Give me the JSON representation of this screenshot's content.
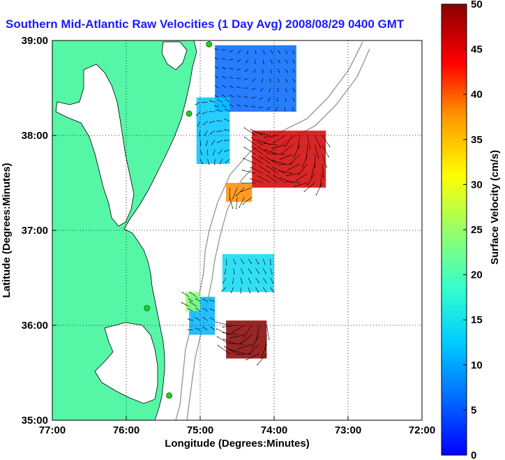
{
  "chart_data": {
    "type": "heatmap",
    "title": "Southern Mid-Atlantic Raw Velocities (1 Day Avg) 2008/08/29 0400 GMT",
    "xlabel": "Longitude (Degrees:Minutes)",
    "ylabel": "Latitude (Degrees:Minutes)",
    "colorbar_label": "Surface Velocity (cm/s)",
    "xlim": [
      -77,
      -72
    ],
    "ylim": [
      35,
      39
    ],
    "x_ticks": [
      {
        "value": -77,
        "label": "77:00"
      },
      {
        "value": -76,
        "label": "76:00"
      },
      {
        "value": -75,
        "label": "75:00"
      },
      {
        "value": -74,
        "label": "74:00"
      },
      {
        "value": -73,
        "label": "73:00"
      },
      {
        "value": -72,
        "label": "72:00"
      }
    ],
    "y_ticks": [
      {
        "value": 39,
        "label": "39:00"
      },
      {
        "value": 38,
        "label": "38:00"
      },
      {
        "value": 37,
        "label": "37:00"
      },
      {
        "value": 36,
        "label": "36:00"
      },
      {
        "value": 35,
        "label": "35:00"
      }
    ],
    "colorbar": {
      "min": 0,
      "max": 50,
      "ticks": [
        0,
        5,
        10,
        15,
        20,
        25,
        30,
        35,
        40,
        45,
        50
      ]
    },
    "grid": true,
    "colors": {
      "land": "#55f7a6",
      "title": "#1a1aff",
      "station": "#22cc22",
      "bathymetry": "#9a9a9a"
    },
    "stations": [
      {
        "lon": -74.88,
        "lat": 38.96
      },
      {
        "lon": -75.15,
        "lat": 38.23
      },
      {
        "lon": -75.72,
        "lat": 36.18
      },
      {
        "lon": -75.42,
        "lat": 35.26
      }
    ],
    "velocity_regions": [
      {
        "lon": [
          -74.8,
          -73.7
        ],
        "lat": [
          38.25,
          38.95
        ],
        "speed_cm_s": 6
      },
      {
        "lon": [
          -75.05,
          -74.6
        ],
        "lat": [
          37.7,
          38.4
        ],
        "speed_cm_s": 12
      },
      {
        "lon": [
          -74.3,
          -73.3
        ],
        "lat": [
          37.45,
          38.05
        ],
        "speed_cm_s": 46
      },
      {
        "lon": [
          -74.65,
          -74.3
        ],
        "lat": [
          37.3,
          37.5
        ],
        "speed_cm_s": 38
      },
      {
        "lon": [
          -74.7,
          -74.0
        ],
        "lat": [
          36.35,
          36.75
        ],
        "speed_cm_s": 14
      },
      {
        "lon": [
          -74.65,
          -74.1
        ],
        "lat": [
          35.65,
          36.05
        ],
        "speed_cm_s": 50
      },
      {
        "lon": [
          -75.15,
          -74.8
        ],
        "lat": [
          35.9,
          36.3
        ],
        "speed_cm_s": 11
      },
      {
        "lon": [
          -75.2,
          -75.0
        ],
        "lat": [
          36.15,
          36.35
        ],
        "speed_cm_s": 24
      }
    ]
  }
}
